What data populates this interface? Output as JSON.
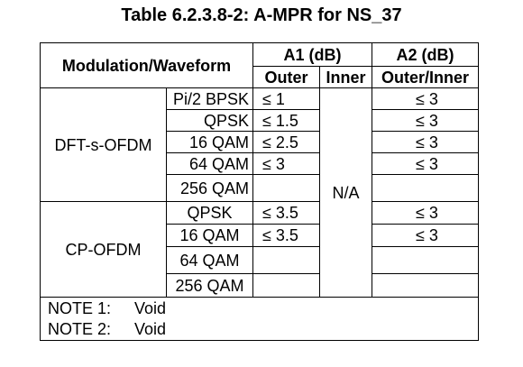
{
  "title": "Table 6.2.3.8-2: A-MPR for NS_37",
  "header": {
    "modulation_waveform": "Modulation/Waveform",
    "a1": "A1 (dB)",
    "a2": "A2 (dB)",
    "outer": "Outer",
    "inner": "Inner",
    "outer_inner": "Outer/Inner"
  },
  "groups": [
    {
      "waveform": "DFT-s-OFDM",
      "rows": [
        {
          "modulation": "Pi/2 BPSK",
          "a1_outer": "≤ 1",
          "a2": "≤ 3"
        },
        {
          "modulation": "QPSK",
          "a1_outer": "≤ 1.5",
          "a2": "≤ 3"
        },
        {
          "modulation": "16 QAM",
          "a1_outer": "≤ 2.5",
          "a2": "≤ 3"
        },
        {
          "modulation": "64 QAM",
          "a1_outer": "≤ 3",
          "a2": "≤ 3"
        },
        {
          "modulation": "256 QAM",
          "a1_outer": "",
          "a2": ""
        }
      ]
    },
    {
      "waveform": "CP-OFDM",
      "rows": [
        {
          "modulation": "QPSK",
          "a1_outer": "≤ 3.5",
          "a2": "≤ 3"
        },
        {
          "modulation": "16 QAM",
          "a1_outer": "≤ 3.5",
          "a2": "≤ 3"
        },
        {
          "modulation": "64 QAM",
          "a1_outer": "",
          "a2": ""
        },
        {
          "modulation": "256 QAM",
          "a1_outer": "",
          "a2": ""
        }
      ]
    }
  ],
  "a1_inner": "N/A",
  "notes": [
    {
      "label": "NOTE 1:",
      "text": "Void"
    },
    {
      "label": "NOTE 2:",
      "text": "Void"
    }
  ]
}
